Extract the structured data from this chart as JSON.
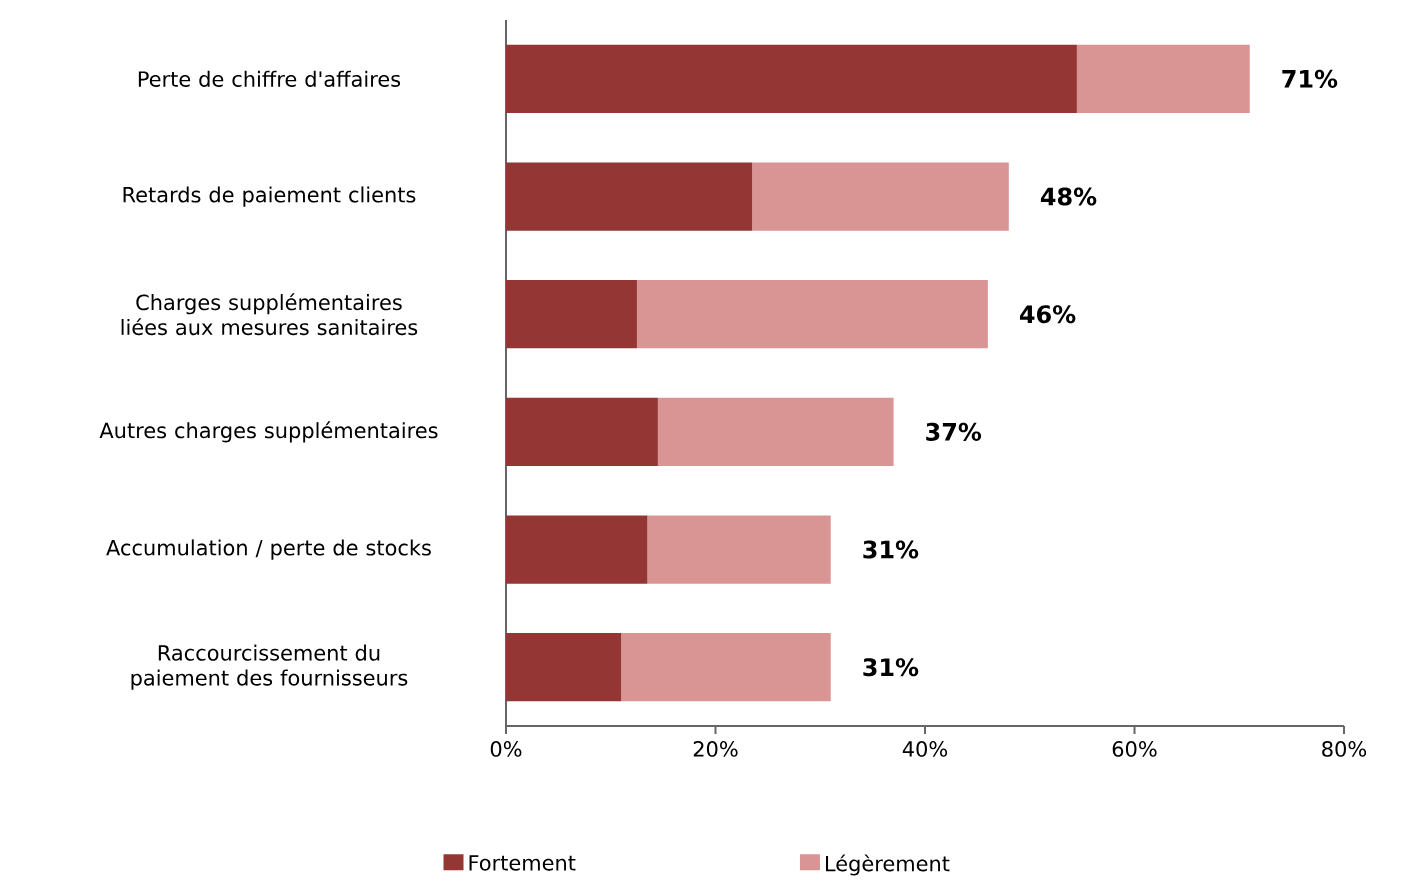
{
  "chart_data": {
    "type": "bar",
    "orientation": "horizontal",
    "stacked": true,
    "categories": [
      "Perte de chiffre d'affaires",
      "Retards de paiement clients",
      "Charges supplémentaires liées aux mesures sanitaires",
      "Autres charges supplémentaires",
      "Accumulation / perte de stocks",
      "Raccourcissement  du paiement des fournisseurs"
    ],
    "series": [
      {
        "name": "Fortement",
        "color": "#943634",
        "values": [
          54.5,
          23.5,
          12.5,
          14.5,
          13.5,
          11
        ]
      },
      {
        "name": "Légèrement",
        "color": "#d99594",
        "values": [
          16.5,
          24.5,
          33.5,
          22.5,
          17.5,
          20
        ]
      }
    ],
    "totals": [
      "71%",
      "48%",
      "46%",
      "37%",
      "31%",
      "31%"
    ],
    "xlim": [
      0,
      80
    ],
    "xticks": [
      {
        "value": 0,
        "label": "0%"
      },
      {
        "value": 20,
        "label": "20%"
      },
      {
        "value": 40,
        "label": "40%"
      },
      {
        "value": 60,
        "label": "60%"
      },
      {
        "value": 80,
        "label": "80%"
      }
    ],
    "grid": false,
    "legend": "bottom"
  }
}
